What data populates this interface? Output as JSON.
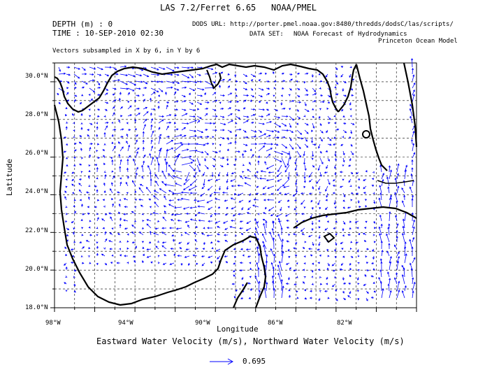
{
  "header": {
    "title": "LAS 7.2/Ferret 6.65",
    "org": "NOAA/PMEL",
    "depth": "DEPTH (m) : 0",
    "time": "TIME : 10-SEP-2010 02:30",
    "dods": "DODS URL: http://porter.pmel.noaa.gov:8480/thredds/dodsC/las/scripts/",
    "dataset_label": "DATA SET:",
    "dataset_1": "NOAA Forecast of Hydrodynamics",
    "dataset_2": "Princeton  Ocean  Model",
    "subsample": "Vectors subsampled in X by 6, in Y by 6"
  },
  "axes": {
    "xlabel": "Longitude",
    "ylabel": "Latitude",
    "xticks": [
      "98°W",
      "94°W",
      "90°W",
      "86°W",
      "82°W"
    ],
    "yticks": [
      "30.0°N",
      "28.0°N",
      "26.0°N",
      "24.0°N",
      "22.0°N",
      "20.0°N",
      "18.0°N"
    ],
    "xlim": [
      -98,
      -80
    ],
    "ylim": [
      18,
      31
    ]
  },
  "variable": "Eastward Water Velocity (m/s), Northward Water Velocity (m/s)",
  "legend": {
    "value": "0.695"
  },
  "colors": {
    "vector": "#0000ff",
    "land": "#000000",
    "grid": "#000000"
  }
}
